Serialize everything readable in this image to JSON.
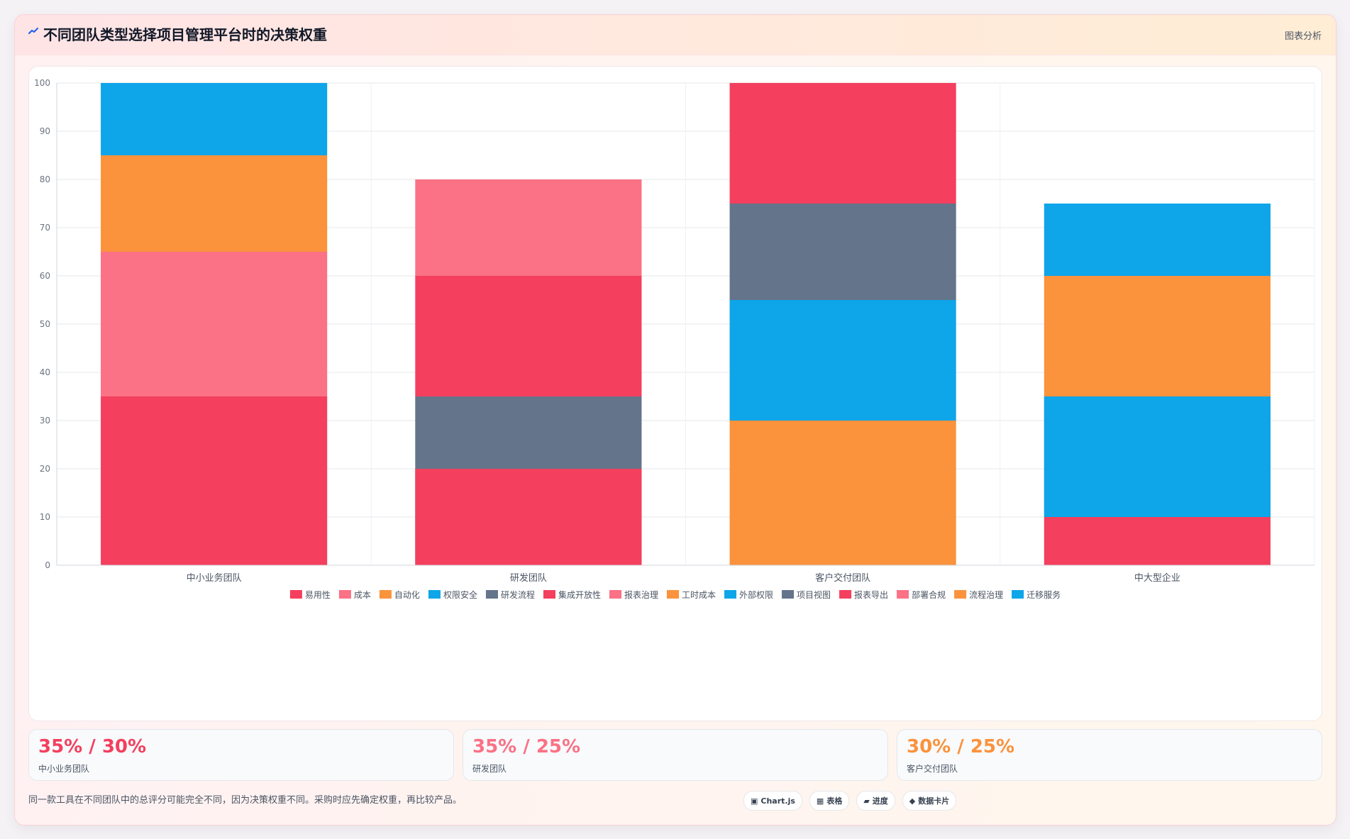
{
  "header": {
    "title": "不同团队类型选择项目管理平台时的决策权重",
    "badge": "图表分析"
  },
  "chart_data": {
    "type": "bar",
    "stacked": true,
    "categories": [
      "中小业务团队",
      "研发团队",
      "客户交付团队",
      "中大型企业"
    ],
    "ylim": [
      0,
      100
    ],
    "yticks": [
      0,
      10,
      20,
      30,
      40,
      50,
      60,
      70,
      80,
      90,
      100
    ],
    "grid": true,
    "legend_position": "bottom",
    "series": [
      {
        "name": "易用性",
        "color": "#f43f5e",
        "values": [
          35,
          0,
          0,
          0
        ]
      },
      {
        "name": "成本",
        "color": "#fb7185",
        "values": [
          30,
          0,
          0,
          0
        ]
      },
      {
        "name": "自动化",
        "color": "#fb923c",
        "values": [
          20,
          0,
          0,
          0
        ]
      },
      {
        "name": "权限安全",
        "color": "#0ea5e9",
        "values": [
          15,
          0,
          0,
          0
        ]
      },
      {
        "name": "研发流程",
        "color": "#64748b",
        "values": [
          0,
          35,
          0,
          0
        ]
      },
      {
        "name": "集成开放性",
        "color": "#f43f5e",
        "values": [
          0,
          25,
          0,
          0
        ]
      },
      {
        "name": "报表治理",
        "color": "#fb7185",
        "values": [
          0,
          20,
          0,
          0
        ]
      },
      {
        "name": "工时成本",
        "color": "#fb923c",
        "values": [
          0,
          0,
          30,
          0
        ]
      },
      {
        "name": "外部权限",
        "color": "#0ea5e9",
        "values": [
          0,
          0,
          25,
          0
        ]
      },
      {
        "name": "项目视图",
        "color": "#64748b",
        "values": [
          0,
          0,
          20,
          0
        ]
      },
      {
        "name": "报表导出",
        "color": "#f43f5e",
        "values": [
          0,
          0,
          25,
          10
        ]
      },
      {
        "name": "部署合规",
        "color": "#fb7185",
        "values": [
          0,
          0,
          0,
          25
        ]
      },
      {
        "name": "流程治理",
        "color": "#fb923c",
        "values": [
          0,
          0,
          0,
          25
        ]
      },
      {
        "name": "迁移服务",
        "color": "#0ea5e9",
        "values": [
          0,
          0,
          0,
          15
        ]
      }
    ]
  },
  "extra_segments": [
    {
      "category": "研发团队",
      "bottom": 0,
      "value": 20,
      "color": "#f43f5e"
    },
    {
      "category": "中大型企业",
      "bottom": 10,
      "value": 25,
      "color": "#0ea5e9"
    }
  ],
  "stats": [
    {
      "value": "35% / 30%",
      "label": "中小业务团队",
      "color": "#f43f5e"
    },
    {
      "value": "35% / 25%",
      "label": "研发团队",
      "color": "#fb7185"
    },
    {
      "value": "30% / 25%",
      "label": "客户交付团队",
      "color": "#fb923c"
    }
  ],
  "footnote": "同一款工具在不同团队中的总评分可能完全不同，因为决策权重不同。采购时应先确定权重，再比较产品。",
  "chips": [
    {
      "icon": "▣",
      "label": "Chart.js"
    },
    {
      "icon": "▦",
      "label": "表格"
    },
    {
      "icon": "▰",
      "label": "进度"
    },
    {
      "icon": "◆",
      "label": "数据卡片"
    }
  ]
}
